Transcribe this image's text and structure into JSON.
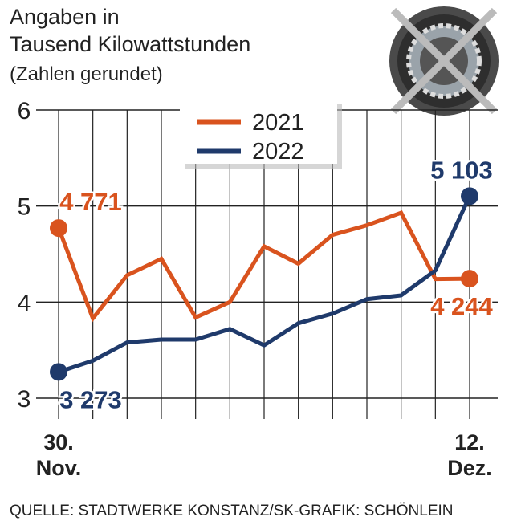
{
  "chart_data": {
    "type": "line",
    "title": [
      "Angaben in",
      "Tausend Kilowattstunden"
    ],
    "subtitle": "(Zahlen gerundet)",
    "source": "QUELLE: STADTWERKE KONSTANZ/SK-GRAFIK: SCHÖNLEIN",
    "categories": [
      "30. Nov.",
      null,
      null,
      null,
      null,
      null,
      null,
      null,
      null,
      null,
      null,
      null,
      "12. Dez."
    ],
    "series": [
      {
        "name": "2021",
        "color": "#d9531e",
        "values": [
          4.771,
          3.83,
          4.28,
          4.45,
          3.84,
          4.0,
          4.58,
          4.4,
          4.7,
          4.8,
          4.93,
          4.24,
          4.244
        ],
        "value_labels": [
          "4 771",
          null,
          null,
          null,
          null,
          null,
          null,
          null,
          null,
          null,
          null,
          null,
          "4 244"
        ]
      },
      {
        "name": "2022",
        "color": "#1f3a6b",
        "values": [
          3.273,
          3.39,
          3.58,
          3.61,
          3.61,
          3.72,
          3.55,
          3.78,
          3.88,
          4.03,
          4.07,
          4.33,
          5.103
        ],
        "value_labels": [
          "3 273",
          null,
          null,
          null,
          null,
          null,
          null,
          null,
          null,
          null,
          null,
          null,
          "5 103"
        ]
      }
    ],
    "ylim": [
      3,
      6
    ],
    "yticks": [
      3,
      4,
      5,
      6
    ],
    "grid": true,
    "legend": "top"
  }
}
